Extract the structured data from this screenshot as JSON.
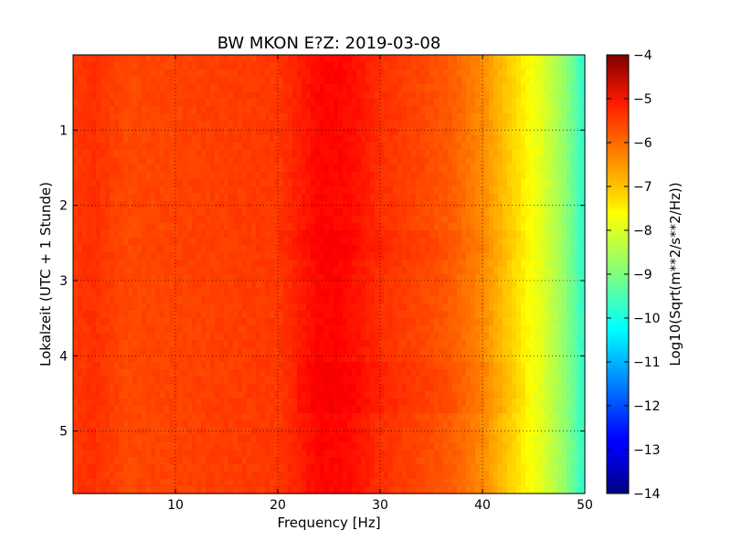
{
  "chart_data": {
    "type": "heatmap",
    "title": "BW MKON E?Z: 2019-03-08",
    "xlabel": "Frequency [Hz]",
    "ylabel": "Lokalzeit (UTC + 1 Stunde)",
    "xlim": [
      0,
      50
    ],
    "ylim": [
      5.83,
      0
    ],
    "x_ticks": [
      10,
      20,
      30,
      40,
      50
    ],
    "x_tick_labels": [
      "10",
      "20",
      "30",
      "40",
      "50"
    ],
    "y_ticks": [
      1,
      2,
      3,
      4,
      5
    ],
    "y_tick_labels": [
      "1",
      "2",
      "3",
      "4",
      "5"
    ],
    "grid": true,
    "colormap": "jet",
    "colorbar": {
      "label": "Log10(Sqrt(m**2/s**2/Hz))",
      "range": [
        -14,
        -4
      ],
      "ticks": [
        -4,
        -5,
        -6,
        -7,
        -8,
        -9,
        -10,
        -11,
        -12,
        -13,
        -14
      ],
      "tick_labels": [
        "−4",
        "−5",
        "−6",
        "−7",
        "−8",
        "−9",
        "−10",
        "−11",
        "−12",
        "−13",
        "−14"
      ]
    },
    "frequency_profile_log10": {
      "frequency_hz": [
        0,
        2,
        5,
        10,
        15,
        20,
        22,
        24,
        26,
        28,
        30,
        35,
        37,
        38,
        40,
        42,
        44,
        46,
        48,
        50
      ],
      "value": [
        -5.8,
        -5.7,
        -5.95,
        -5.9,
        -5.85,
        -5.8,
        -5.55,
        -5.3,
        -5.3,
        -5.45,
        -5.7,
        -6.0,
        -6.15,
        -6.3,
        -6.6,
        -7.1,
        -7.6,
        -8.1,
        -8.8,
        -9.8
      ]
    }
  }
}
